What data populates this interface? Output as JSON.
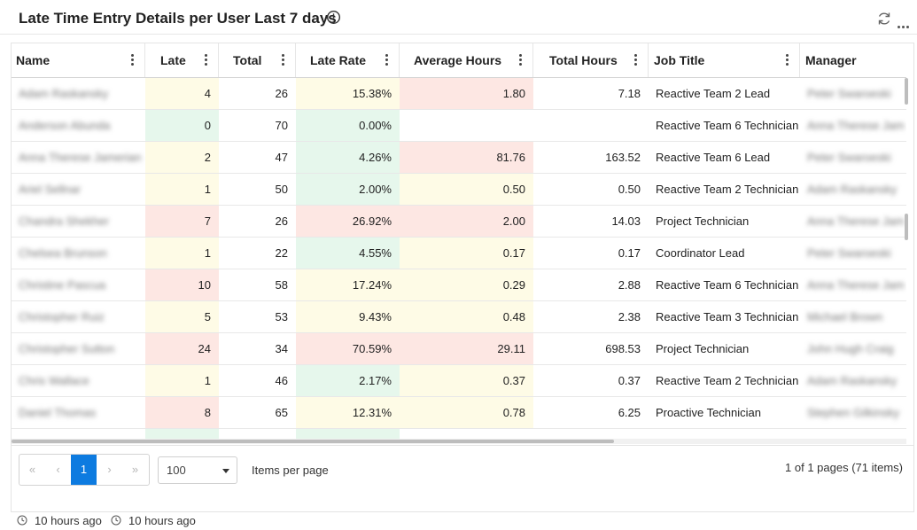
{
  "title": "Late Time Entry Details per User Last 7 days",
  "columns": [
    {
      "label": "Name",
      "key": "name"
    },
    {
      "label": "Late",
      "key": "late"
    },
    {
      "label": "Total",
      "key": "total"
    },
    {
      "label": "Late Rate",
      "key": "late_rate"
    },
    {
      "label": "Average Hours",
      "key": "avg_hours"
    },
    {
      "label": "Total Hours",
      "key": "total_hours"
    },
    {
      "label": "Job Title",
      "key": "job_title"
    },
    {
      "label": "Manager",
      "key": "manager"
    }
  ],
  "colors": {
    "yellow": "#fefbe6",
    "green": "#e6f7ec",
    "red": "#fde7e3",
    "accent": "#0d7be0"
  },
  "rows": [
    {
      "name": "Adam Raskansky",
      "late": "4",
      "total": "26",
      "late_rate": "15.38%",
      "avg_hours": "1.80",
      "total_hours": "7.18",
      "job_title": "Reactive Team 2 Lead",
      "manager": "Peter Swaroeski",
      "c_late": "y",
      "c_rate": "y",
      "c_avg": "r"
    },
    {
      "name": "Anderson Abunda",
      "late": "0",
      "total": "70",
      "late_rate": "0.00%",
      "avg_hours": "",
      "total_hours": "",
      "job_title": "Reactive Team 6 Technician",
      "manager": "Anna Therese Jameri",
      "c_late": "g",
      "c_rate": "g",
      "c_avg": ""
    },
    {
      "name": "Anna Therese Jamerian",
      "late": "2",
      "total": "47",
      "late_rate": "4.26%",
      "avg_hours": "81.76",
      "total_hours": "163.52",
      "job_title": "Reactive Team 6 Lead",
      "manager": "Peter Swaroeski",
      "c_late": "y",
      "c_rate": "g",
      "c_avg": "r"
    },
    {
      "name": "Ariel Sellnar",
      "late": "1",
      "total": "50",
      "late_rate": "2.00%",
      "avg_hours": "0.50",
      "total_hours": "0.50",
      "job_title": "Reactive Team 2 Technician",
      "manager": "Adam Raskansky",
      "c_late": "y",
      "c_rate": "g",
      "c_avg": "y"
    },
    {
      "name": "Chandra Shekher",
      "late": "7",
      "total": "26",
      "late_rate": "26.92%",
      "avg_hours": "2.00",
      "total_hours": "14.03",
      "job_title": "Project Technician",
      "manager": "Anna Therese Jameri",
      "c_late": "r",
      "c_rate": "r",
      "c_avg": "r"
    },
    {
      "name": "Chelsea Brunson",
      "late": "1",
      "total": "22",
      "late_rate": "4.55%",
      "avg_hours": "0.17",
      "total_hours": "0.17",
      "job_title": "Coordinator Lead",
      "manager": "Peter Swaroeski",
      "c_late": "y",
      "c_rate": "g",
      "c_avg": "y"
    },
    {
      "name": "Christine Pascua",
      "late": "10",
      "total": "58",
      "late_rate": "17.24%",
      "avg_hours": "0.29",
      "total_hours": "2.88",
      "job_title": "Reactive Team 6 Technician",
      "manager": "Anna Therese Jameri",
      "c_late": "r",
      "c_rate": "y",
      "c_avg": "y"
    },
    {
      "name": "Christopher Ruiz",
      "late": "5",
      "total": "53",
      "late_rate": "9.43%",
      "avg_hours": "0.48",
      "total_hours": "2.38",
      "job_title": "Reactive Team 3 Technician",
      "manager": "Michael Brown",
      "c_late": "y",
      "c_rate": "y",
      "c_avg": "y"
    },
    {
      "name": "Christopher Sutton",
      "late": "24",
      "total": "34",
      "late_rate": "70.59%",
      "avg_hours": "29.11",
      "total_hours": "698.53",
      "job_title": "Project Technician",
      "manager": "John Hugh Craig",
      "c_late": "r",
      "c_rate": "r",
      "c_avg": "r"
    },
    {
      "name": "Chris Wallace",
      "late": "1",
      "total": "46",
      "late_rate": "2.17%",
      "avg_hours": "0.37",
      "total_hours": "0.37",
      "job_title": "Reactive Team 2 Technician",
      "manager": "Adam Raskansky",
      "c_late": "y",
      "c_rate": "g",
      "c_avg": "y"
    },
    {
      "name": "Daniel Thomas",
      "late": "8",
      "total": "65",
      "late_rate": "12.31%",
      "avg_hours": "0.78",
      "total_hours": "6.25",
      "job_title": "Proactive Technician",
      "manager": "Stephen Gilkinsky",
      "c_late": "r",
      "c_rate": "y",
      "c_avg": "y"
    }
  ],
  "pager": {
    "first": "«",
    "prev": "‹",
    "current": "1",
    "next": "›",
    "last": "»",
    "page_size": "100",
    "items_per_page_label": "Items per page",
    "page_info": "1 of 1 pages (71 items)"
  },
  "footer": {
    "timestamp1": "10 hours ago",
    "timestamp2": "10 hours ago"
  },
  "icons": [
    "info-icon",
    "refresh-icon",
    "more-icon",
    "column-menu-icon",
    "clock-icon",
    "chevron-down-icon"
  ]
}
